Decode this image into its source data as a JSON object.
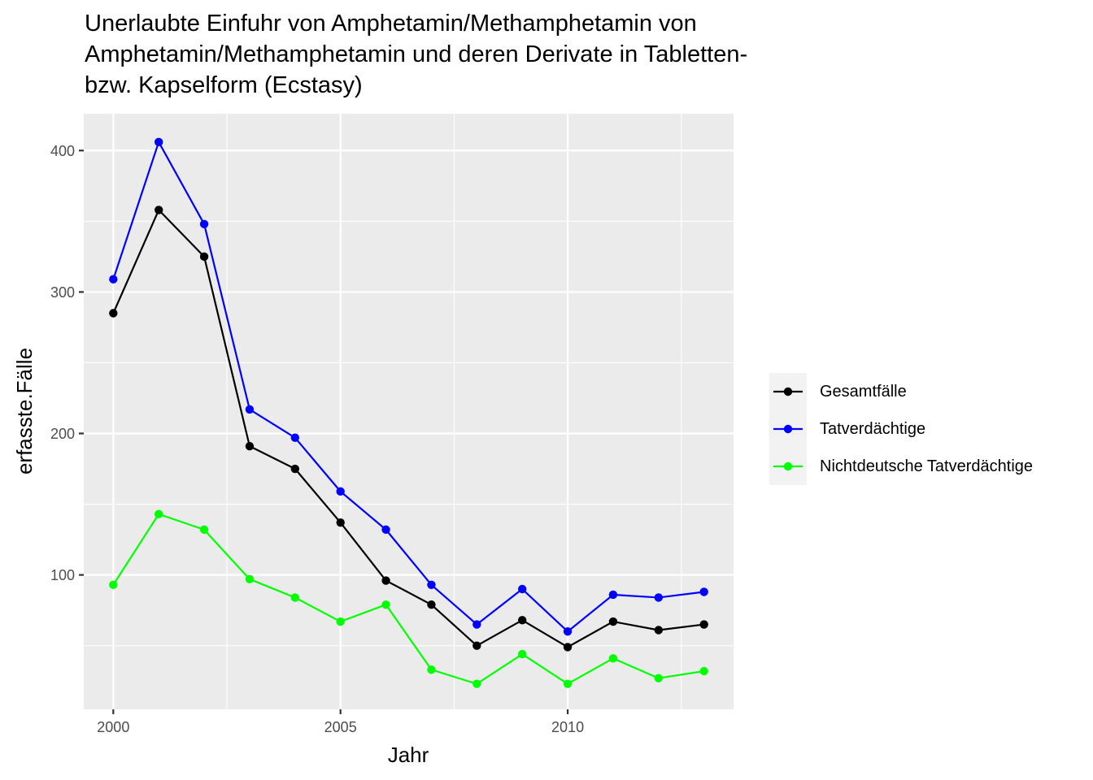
{
  "chart_data": {
    "type": "line",
    "title": "Unerlaubte Einfuhr von Amphetamin/Methamphetamin von Amphetamin/Methamphetamin und deren Derivate in Tabletten- bzw. Kapselform (Ecstasy)",
    "title_lines": [
      "Unerlaubte Einfuhr von Amphetamin/Methamphetamin von",
      "Amphetamin/Methamphetamin und deren Derivate in Tabletten-",
      "bzw. Kapselform (Ecstasy)"
    ],
    "xlabel": "Jahr",
    "ylabel": "erfasste.Fälle",
    "x": [
      2000,
      2001,
      2002,
      2003,
      2004,
      2005,
      2006,
      2007,
      2008,
      2009,
      2010,
      2011,
      2012,
      2013
    ],
    "xlim": [
      1999.35,
      2013.65
    ],
    "ylim": [
      5,
      426
    ],
    "x_ticks": [
      2000,
      2005,
      2010
    ],
    "x_tick_labels": [
      "2000",
      "2005",
      "2010"
    ],
    "y_ticks": [
      100,
      200,
      300,
      400
    ],
    "y_tick_labels": [
      "100",
      "200",
      "300",
      "400"
    ],
    "grid": true,
    "legend_position": "right",
    "series": [
      {
        "name": "Gesamtfälle",
        "color": "#000000",
        "values": [
          285,
          358,
          325,
          191,
          175,
          137,
          96,
          79,
          50,
          68,
          49,
          67,
          61,
          65
        ]
      },
      {
        "name": "Tatverdächtige",
        "color": "#0000ff",
        "values": [
          309,
          406,
          348,
          217,
          197,
          159,
          132,
          93,
          65,
          90,
          60,
          86,
          84,
          88
        ]
      },
      {
        "name": "Nichtdeutsche Tatverdächtige",
        "color": "#00ff00",
        "values": [
          93,
          143,
          132,
          97,
          84,
          67,
          79,
          33,
          23,
          44,
          23,
          41,
          27,
          32
        ]
      }
    ]
  }
}
